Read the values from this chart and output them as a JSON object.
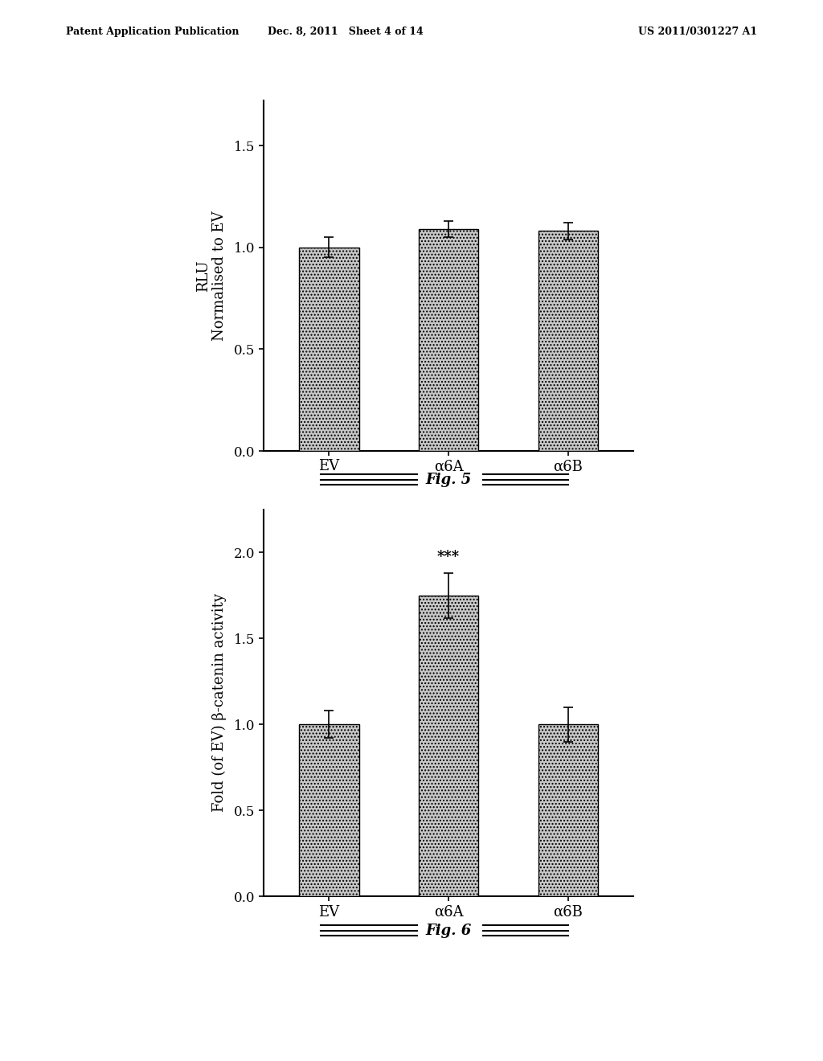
{
  "fig1": {
    "categories": [
      "EV",
      "α6A",
      "α6B"
    ],
    "values": [
      1.0,
      1.09,
      1.08
    ],
    "errors": [
      0.05,
      0.04,
      0.04
    ],
    "ylabel_line1": "RLU",
    "ylabel_line2": "Normalised to EV",
    "ylim": [
      0.0,
      1.72
    ],
    "yticks": [
      0.0,
      0.5,
      1.0,
      1.5
    ],
    "ytick_labels": [
      "0.0",
      "0.5",
      "1.0",
      "1.5"
    ]
  },
  "fig2": {
    "categories": [
      "EV",
      "α6A",
      "α6B"
    ],
    "values": [
      1.0,
      1.75,
      1.0
    ],
    "errors": [
      0.08,
      0.13,
      0.1
    ],
    "ylabel": "Fold (of EV) β-catenin activity",
    "ylim": [
      0.0,
      2.25
    ],
    "yticks": [
      0.0,
      0.5,
      1.0,
      1.5,
      2.0
    ],
    "ytick_labels": [
      "0.0",
      "0.5",
      "1.0",
      "1.5",
      "2.0"
    ],
    "annotation": "***",
    "annotation_bar_idx": 1
  },
  "bar_color": "#c8c8c8",
  "bar_hatch": "....",
  "bar_edgecolor": "#000000",
  "background_color": "#ffffff",
  "header_left": "Patent Application Publication",
  "header_mid": "Dec. 8, 2011   Sheet 4 of 14",
  "header_right": "US 2011/0301227 A1",
  "fontsize_ticks": 12,
  "fontsize_labels": 12,
  "fontsize_header": 9,
  "bar_width": 0.5
}
